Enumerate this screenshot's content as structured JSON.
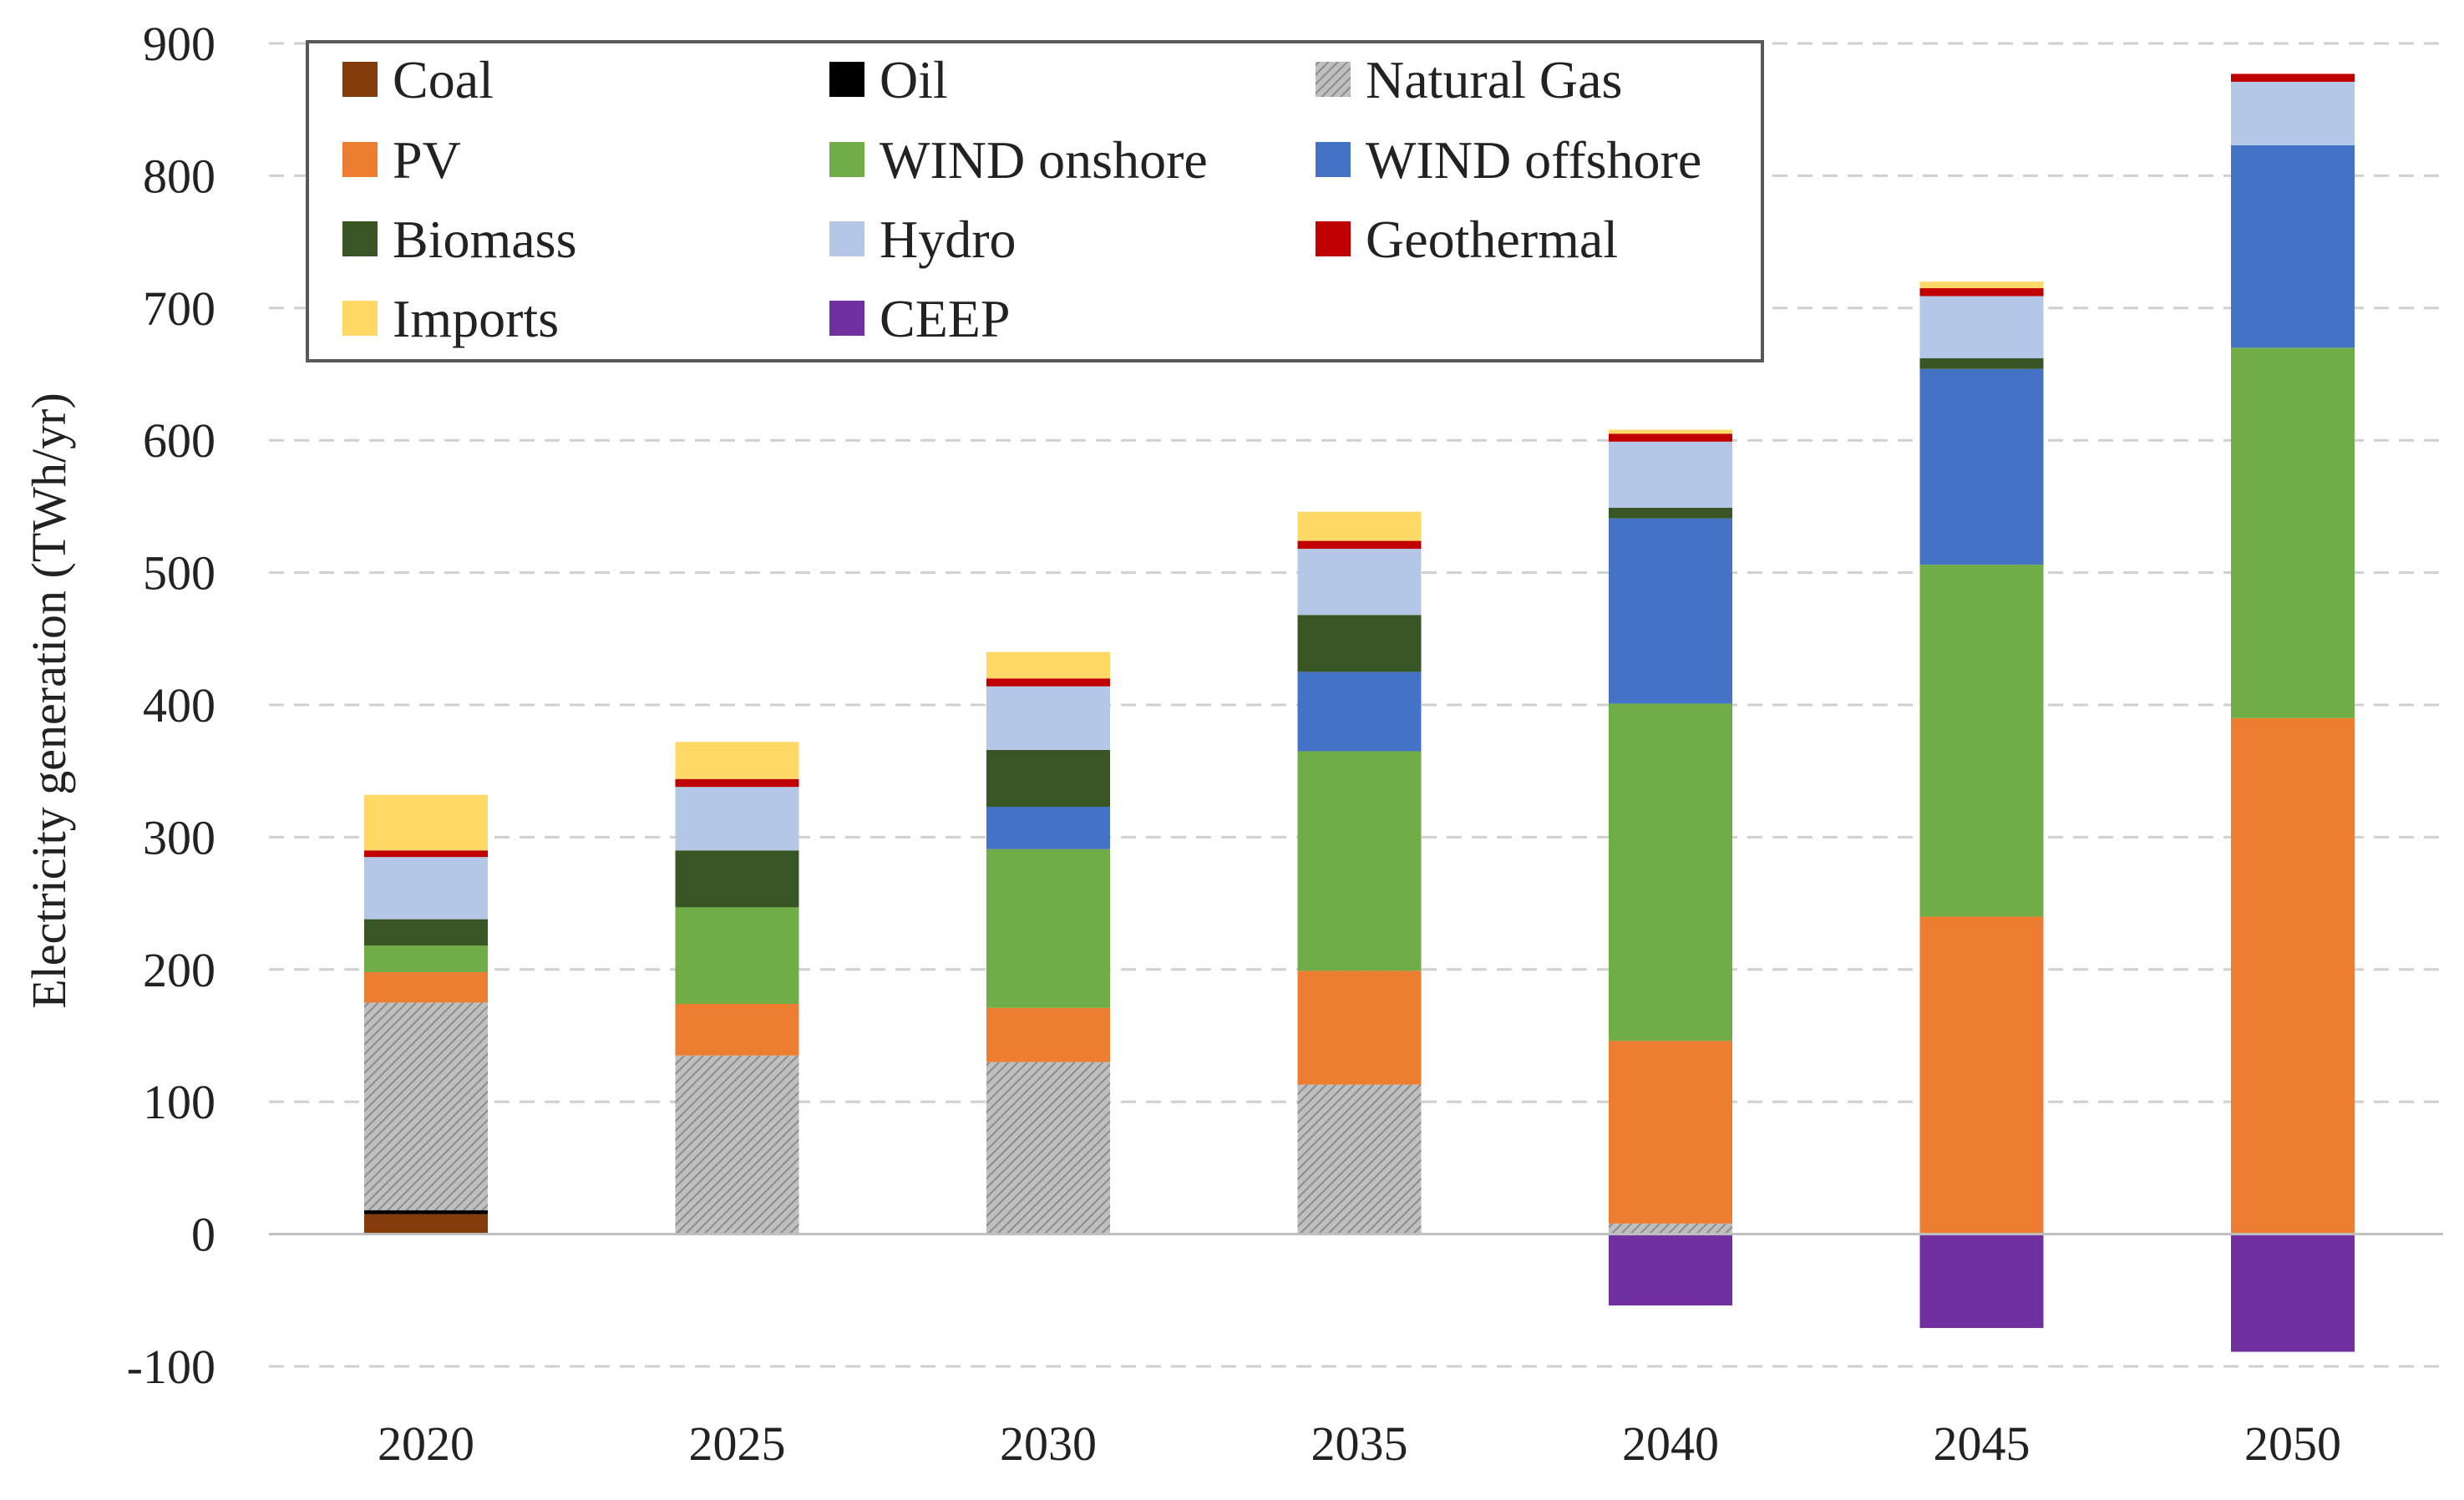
{
  "chart_data": {
    "type": "bar",
    "stacked": true,
    "title": "",
    "xlabel": "",
    "ylabel": "Electricity generation (TWh/yr)",
    "ylim": [
      -100,
      900
    ],
    "yticks": [
      -100,
      0,
      100,
      200,
      300,
      400,
      500,
      600,
      700,
      800,
      900
    ],
    "grid": "horizontal dashed",
    "legend_position": "top-left",
    "categories": [
      "2020",
      "2025",
      "2030",
      "2035",
      "2040",
      "2045",
      "2050"
    ],
    "series": [
      {
        "name": "Coal",
        "color": "#843c0c",
        "values": [
          15,
          0,
          0,
          0,
          0,
          0,
          0
        ]
      },
      {
        "name": "Oil",
        "color": "#000000",
        "values": [
          3,
          0,
          0,
          0,
          0,
          0,
          0
        ]
      },
      {
        "name": "Natural Gas",
        "color": "#a6a6a6",
        "pattern": "hatch",
        "values": [
          157,
          135,
          130,
          113,
          8,
          0,
          0
        ]
      },
      {
        "name": "PV",
        "color": "#ed7d31",
        "values": [
          23,
          39,
          41,
          86,
          138,
          240,
          390
        ]
      },
      {
        "name": "WIND onshore",
        "color": "#70ad47",
        "values": [
          20,
          73,
          120,
          166,
          255,
          266,
          280
        ]
      },
      {
        "name": "WIND offshore",
        "color": "#4472c4",
        "values": [
          0,
          0,
          32,
          60,
          140,
          148,
          153
        ]
      },
      {
        "name": "Biomass",
        "color": "#375623",
        "values": [
          20,
          43,
          43,
          43,
          8,
          8,
          0
        ]
      },
      {
        "name": "Hydro",
        "color": "#b4c7e7",
        "values": [
          47,
          48,
          48,
          50,
          50,
          47,
          48
        ]
      },
      {
        "name": "Geothermal",
        "color": "#c00000",
        "values": [
          5,
          6,
          6,
          6,
          6,
          6,
          6
        ]
      },
      {
        "name": "Imports",
        "color": "#ffd966",
        "values": [
          42,
          28,
          20,
          22,
          3,
          5,
          0
        ]
      },
      {
        "name": "CEEP",
        "color": "#7030a0",
        "values": [
          0,
          0,
          0,
          0,
          -54,
          -71,
          -89
        ]
      }
    ]
  }
}
